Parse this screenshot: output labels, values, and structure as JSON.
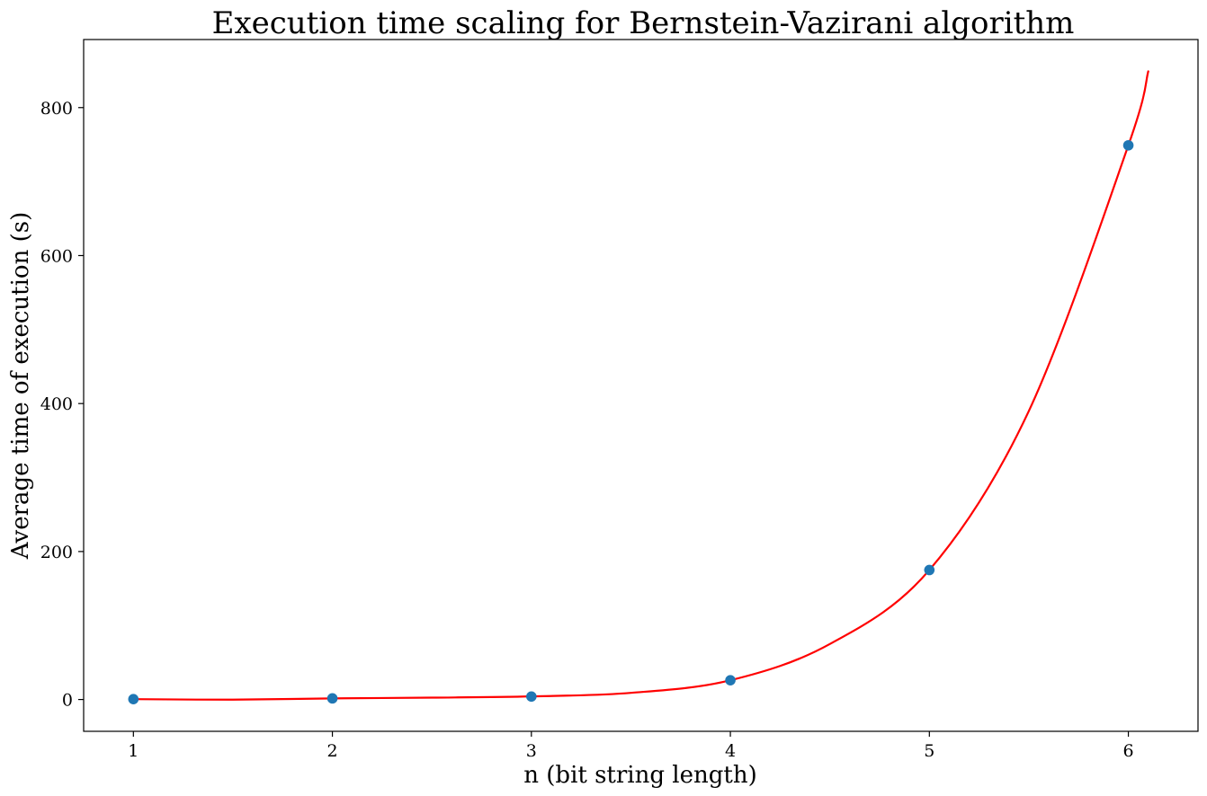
{
  "chart_data": {
    "type": "scatter",
    "title": "Execution time scaling for Bernstein-Vazirani algorithm",
    "xlabel": "n (bit string length)",
    "ylabel": "Average time of execution (s)",
    "xlim": [
      0.75,
      6.35
    ],
    "ylim": [
      -43,
      892
    ],
    "x_ticks": [
      1,
      2,
      3,
      4,
      5,
      6
    ],
    "y_ticks": [
      0,
      200,
      400,
      600,
      800
    ],
    "grid": false,
    "legend": "none",
    "series": [
      {
        "kind": "scatter",
        "color": "#1f77b4",
        "x": [
          1,
          2,
          3,
          4,
          5,
          6
        ],
        "y": [
          0.5,
          1.5,
          4,
          26,
          175,
          749
        ]
      },
      {
        "kind": "line",
        "color": "#ff0000",
        "x": [
          1,
          1.5,
          2,
          2.5,
          3,
          3.5,
          4,
          4.5,
          5,
          5.5,
          6,
          6.1
        ],
        "y": [
          0.5,
          -0.2,
          1.5,
          2.5,
          4.2,
          9,
          26,
          75,
          175,
          390,
          749,
          849
        ]
      }
    ]
  }
}
